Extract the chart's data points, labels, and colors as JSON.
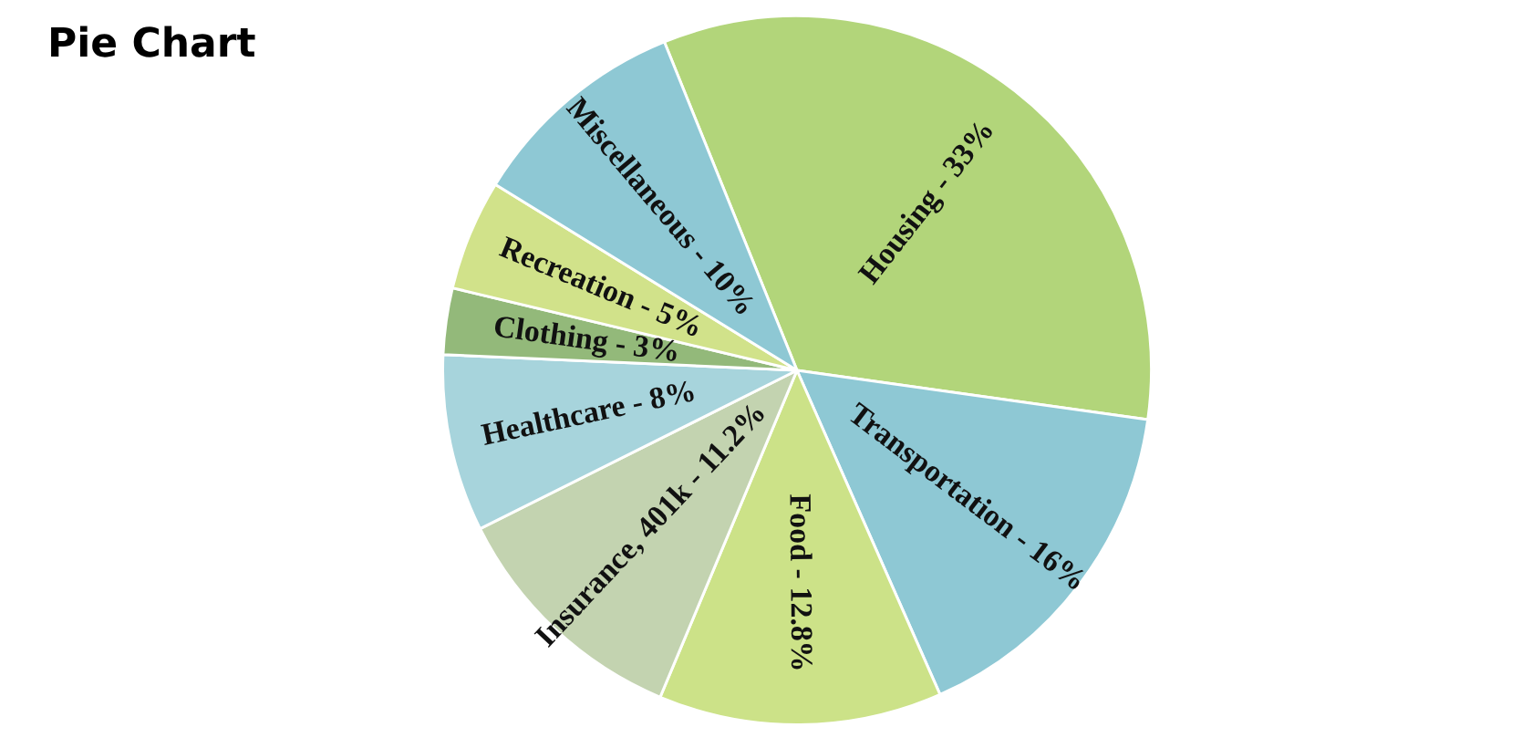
{
  "chart_data": {
    "type": "pie",
    "title": "Pie Chart",
    "categories": [
      "Housing",
      "Transportation",
      "Food",
      "Insurance, 401k",
      "Healthcare",
      "Clothing",
      "Recreation",
      "Miscellaneous"
    ],
    "values": [
      33,
      16,
      12.8,
      11.2,
      8,
      3,
      5,
      10
    ],
    "value_labels": [
      "33%",
      "16%",
      "12.8%",
      "11.2%",
      "8%",
      "3%",
      "5%",
      "10%"
    ],
    "colors": [
      "#b2d57a",
      "#8ec8d4",
      "#cce288",
      "#c3d3b0",
      "#a7d4dc",
      "#93b97a",
      "#d1e28a",
      "#8ec8d4"
    ],
    "legend": false
  }
}
